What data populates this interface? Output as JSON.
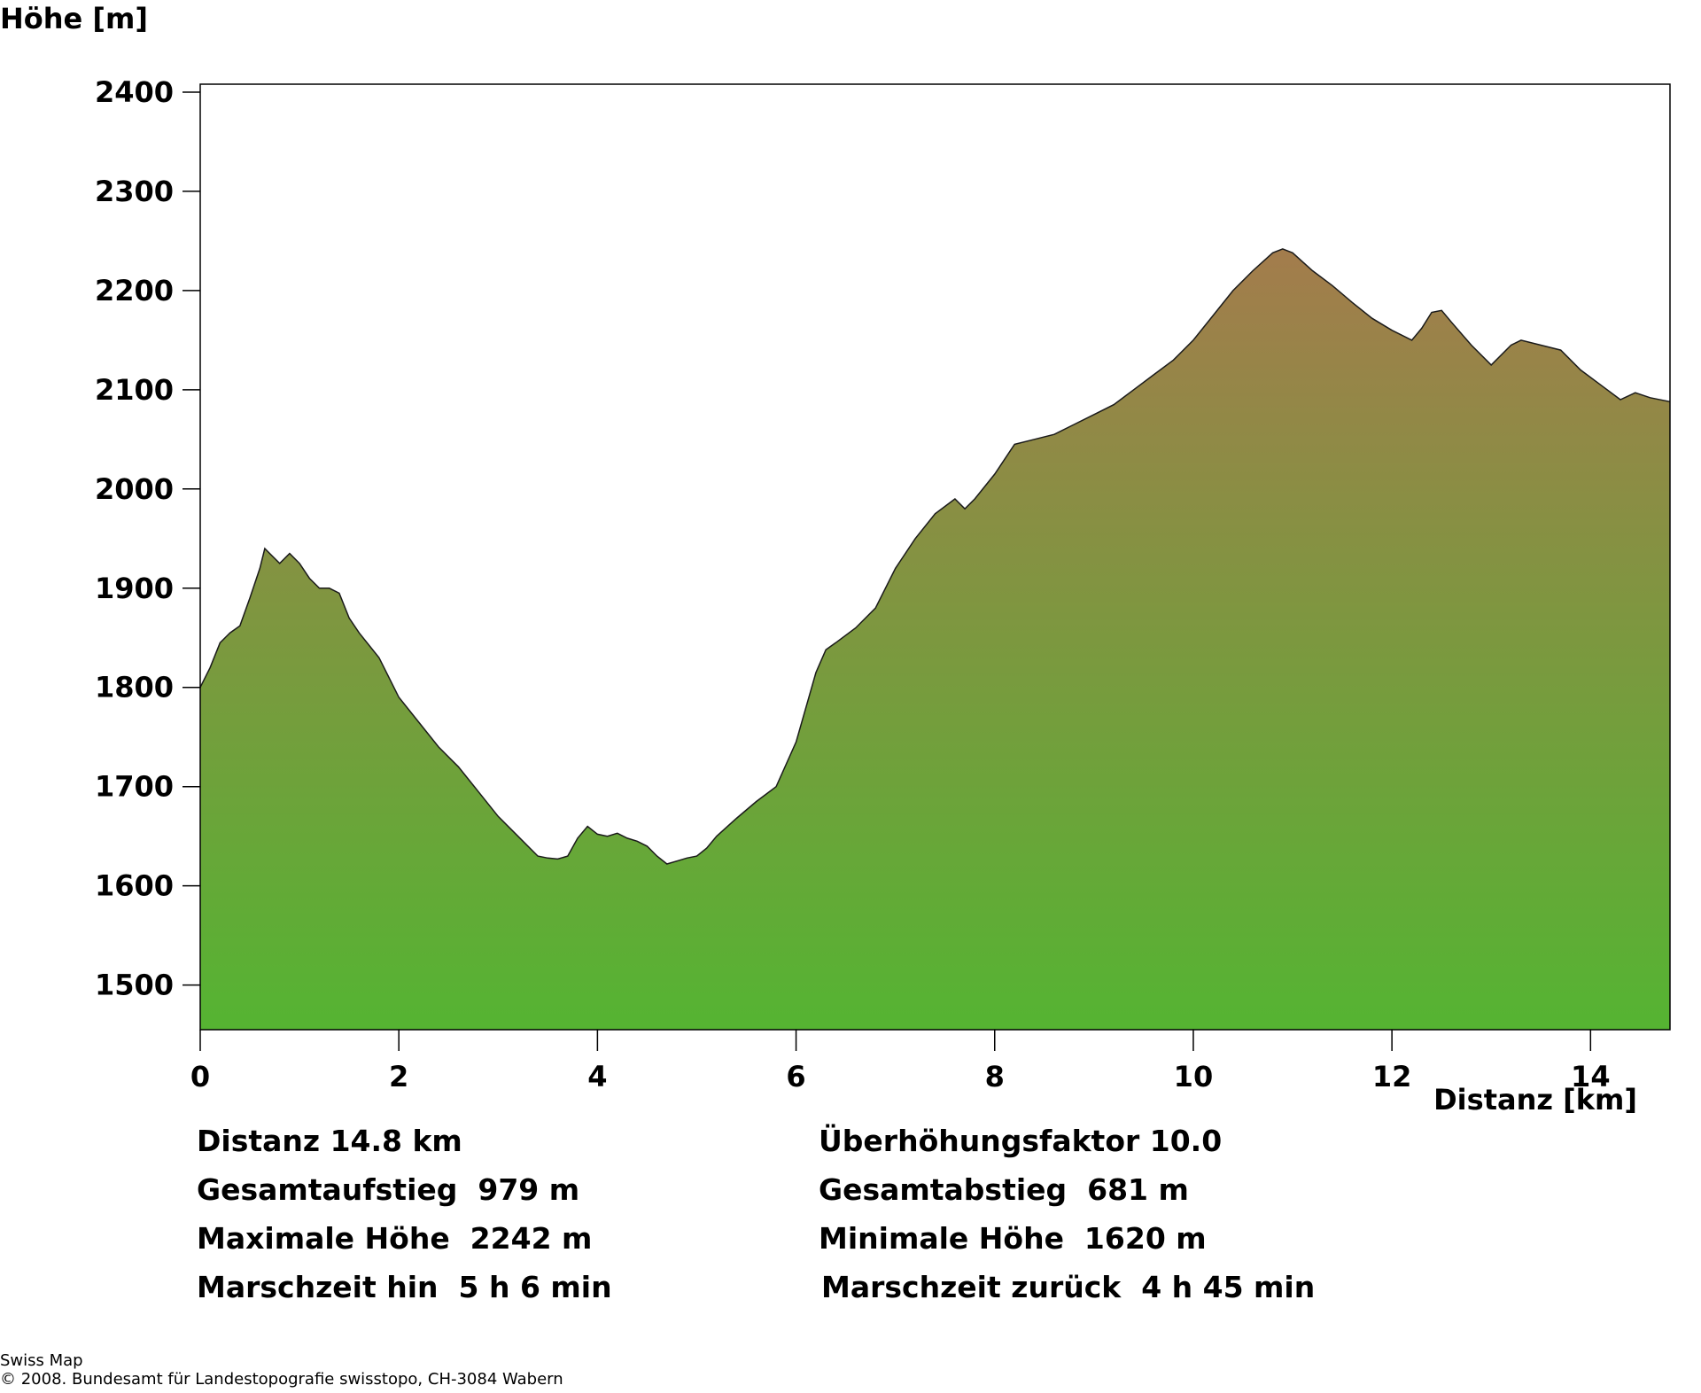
{
  "chart_data": {
    "type": "area",
    "xlabel": "Distanz [km]",
    "ylabel": "Höhe [m]",
    "xlim": [
      0,
      14.8
    ],
    "ylim": [
      1455,
      2408
    ],
    "x_ticks": [
      0,
      2,
      4,
      6,
      8,
      10,
      12,
      14
    ],
    "y_ticks": [
      1500,
      1600,
      1700,
      1800,
      1900,
      2000,
      2100,
      2200,
      2300,
      2400
    ],
    "grid": false,
    "fill_gradient": [
      "#a37c4c",
      "#55b432"
    ],
    "x": [
      0,
      0.1,
      0.2,
      0.3,
      0.4,
      0.5,
      0.6,
      0.65,
      0.7,
      0.8,
      0.9,
      1.0,
      1.1,
      1.2,
      1.3,
      1.4,
      1.5,
      1.6,
      1.8,
      2.0,
      2.2,
      2.4,
      2.6,
      2.8,
      3.0,
      3.2,
      3.4,
      3.5,
      3.6,
      3.7,
      3.8,
      3.9,
      4.0,
      4.1,
      4.2,
      4.3,
      4.4,
      4.5,
      4.6,
      4.7,
      4.8,
      4.9,
      5.0,
      5.1,
      5.2,
      5.4,
      5.6,
      5.8,
      6.0,
      6.2,
      6.3,
      6.4,
      6.6,
      6.8,
      7.0,
      7.2,
      7.4,
      7.6,
      7.7,
      7.8,
      8.0,
      8.2,
      8.4,
      8.6,
      8.8,
      9.0,
      9.2,
      9.4,
      9.6,
      9.8,
      10.0,
      10.2,
      10.4,
      10.6,
      10.8,
      10.9,
      11.0,
      11.2,
      11.4,
      11.6,
      11.8,
      12.0,
      12.2,
      12.3,
      12.4,
      12.5,
      12.6,
      12.8,
      13.0,
      13.2,
      13.3,
      13.5,
      13.7,
      13.9,
      14.1,
      14.3,
      14.45,
      14.6,
      14.8
    ],
    "y": [
      1800,
      1820,
      1845,
      1855,
      1862,
      1890,
      1920,
      1940,
      1935,
      1925,
      1935,
      1925,
      1910,
      1900,
      1900,
      1895,
      1870,
      1855,
      1830,
      1790,
      1765,
      1740,
      1720,
      1695,
      1670,
      1650,
      1630,
      1628,
      1627,
      1630,
      1648,
      1660,
      1652,
      1650,
      1653,
      1648,
      1645,
      1640,
      1630,
      1622,
      1625,
      1628,
      1630,
      1638,
      1650,
      1668,
      1685,
      1700,
      1745,
      1815,
      1838,
      1845,
      1860,
      1880,
      1920,
      1950,
      1975,
      1990,
      1980,
      1990,
      2015,
      2045,
      2050,
      2055,
      2065,
      2075,
      2085,
      2100,
      2115,
      2130,
      2150,
      2175,
      2200,
      2220,
      2238,
      2242,
      2238,
      2220,
      2205,
      2188,
      2172,
      2160,
      2150,
      2162,
      2178,
      2180,
      2168,
      2145,
      2125,
      2145,
      2150,
      2145,
      2140,
      2120,
      2105,
      2090,
      2097,
      2092,
      2088
    ]
  },
  "stats": {
    "left": [
      "Distanz 14.8 km",
      "Gesamtaufstieg  979 m",
      "Maximale Höhe  2242 m",
      "Marschzeit hin  5 h 6 min"
    ],
    "right": [
      "Überhöhungsfaktor 10.0",
      "Gesamtabstieg  681 m",
      "Minimale Höhe  1620 m",
      "Marschzeit zurück  4 h 45 min"
    ]
  },
  "credits": {
    "line1": "Swiss Map",
    "line2": "© 2008. Bundesamt für Landestopografie swisstopo, CH-3084 Wabern"
  }
}
